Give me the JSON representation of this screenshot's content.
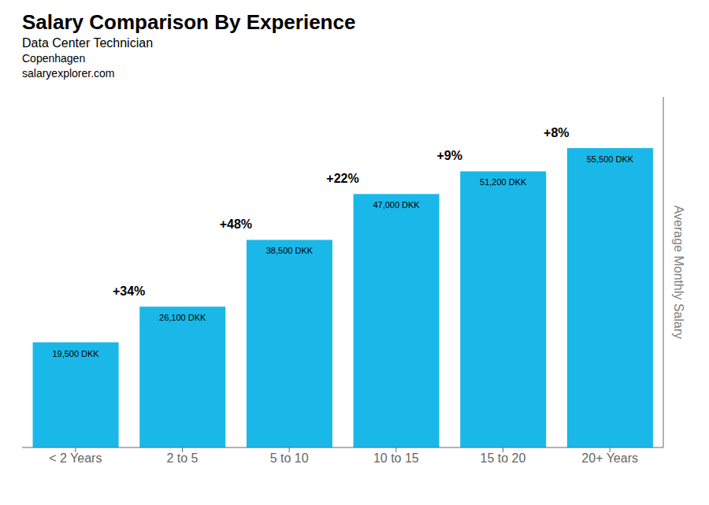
{
  "chart_data": {
    "type": "bar",
    "title": "Salary Comparison By Experience",
    "subtitle": "Data Center Technician",
    "annotations": [
      {
        "text": "Copenhagen"
      },
      {
        "text": "salaryexplorer.com"
      },
      {
        "text": "+34%",
        "between": [
          "< 2 Years",
          "2 to 5"
        ]
      },
      {
        "text": "+48%",
        "between": [
          "2 to 5",
          "5 to 10"
        ]
      },
      {
        "text": "+22%",
        "between": [
          "5 to 10",
          "10 to 15"
        ]
      },
      {
        "text": "+9%",
        "between": [
          "10 to 15",
          "15 to 20"
        ]
      },
      {
        "text": "+8%",
        "between": [
          "15 to 20",
          "20+ Years"
        ]
      }
    ],
    "categories": [
      "< 2 Years",
      "2 to 5",
      "5 to 10",
      "10 to 15",
      "15 to 20",
      "20+ Years"
    ],
    "values": [
      19500,
      26100,
      38500,
      47000,
      51200,
      55500
    ],
    "value_labels": [
      "19,500 DKK",
      "26,100 DKK",
      "38,500 DKK",
      "47,000 DKK",
      "51,200 DKK",
      "55,500 DKK"
    ],
    "data_labels": true,
    "color": "#1ab8e8",
    "ylabel": "Average Monthly Salary",
    "ylim": [
      0,
      65000
    ],
    "tick_labels": "x",
    "grid": false
  }
}
